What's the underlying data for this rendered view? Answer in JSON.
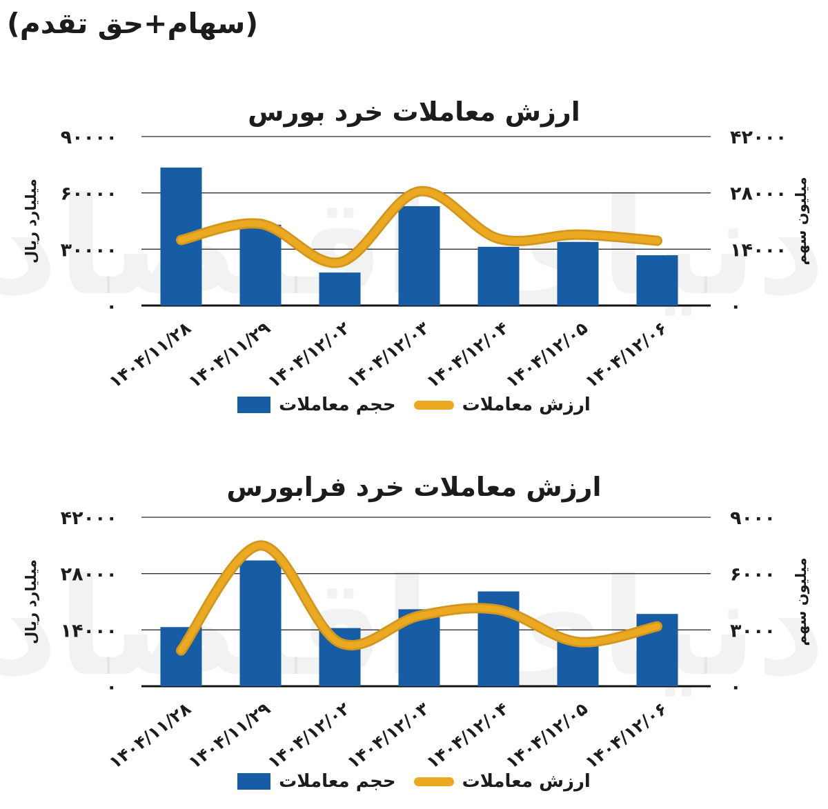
{
  "page": {
    "header_note": "(سهام+حق تقدم)",
    "watermark_text": "دنیای اقتصاد"
  },
  "colors": {
    "bar_blue": "#165DA5",
    "line_yellow": "#EBA922",
    "line_yellow_edge": "#D2961C",
    "grid": "#2f2f2f",
    "axis_line": "#111111",
    "text": "#1c1c1c",
    "watermark": "#000000"
  },
  "chart_data": [
    {
      "type": "bar",
      "combo": "bar+line",
      "title": "ارزش معاملات خرد بورس",
      "categories": [
        "۱۴۰۴/۱۱/۲۸",
        "۱۴۰۴/۱۱/۲۹",
        "۱۴۰۴/۱۲/۰۲",
        "۱۴۰۴/۱۲/۰۳",
        "۱۴۰۴/۱۲/۰۴",
        "۱۴۰۴/۱۲/۰۵",
        "۱۴۰۴/۱۲/۰۶"
      ],
      "series": [
        {
          "name": "حجم معاملات",
          "type": "bar",
          "axis": "right",
          "values": [
            34300,
            20100,
            8200,
            24700,
            14600,
            15800,
            12500
          ]
        },
        {
          "name": "ارزش معاملات",
          "type": "line",
          "axis": "left",
          "values": [
            34900,
            43500,
            23000,
            60800,
            35600,
            37800,
            34500
          ]
        }
      ],
      "axes": {
        "left": {
          "title": "میلیارد ریال",
          "range": [
            0,
            90000
          ],
          "ticks": [
            "۰",
            "۳۰۰۰۰",
            "۶۰۰۰۰",
            "۹۰۰۰۰"
          ]
        },
        "right": {
          "title": "میلیون سهم",
          "range": [
            0,
            42000
          ],
          "ticks": [
            "۰",
            "۱۴۰۰۰",
            "۲۸۰۰۰",
            "۴۲۰۰۰"
          ]
        }
      },
      "grid": true,
      "legend_position": "bottom"
    },
    {
      "type": "bar",
      "combo": "bar+line",
      "title": "ارزش معاملات خرد فرابورس",
      "categories": [
        "۱۴۰۴/۱۱/۲۸",
        "۱۴۰۴/۱۱/۲۹",
        "۱۴۰۴/۱۲/۰۲",
        "۱۴۰۴/۱۲/۰۳",
        "۱۴۰۴/۱۲/۰۴",
        "۱۴۰۴/۱۲/۰۵",
        "۱۴۰۴/۱۲/۰۶"
      ],
      "series": [
        {
          "name": "حجم معاملات",
          "type": "bar",
          "axis": "right",
          "values": [
            3150,
            6700,
            3100,
            4100,
            5050,
            2450,
            3850
          ]
        },
        {
          "name": "ارزش معاملات",
          "type": "line",
          "axis": "left",
          "values": [
            8900,
            35000,
            10800,
            17500,
            19000,
            11000,
            14900
          ]
        }
      ],
      "axes": {
        "left": {
          "title": "میلیارد ریال",
          "range": [
            0,
            42000
          ],
          "ticks": [
            "۰",
            "۱۴۰۰۰",
            "۲۸۰۰۰",
            "۴۲۰۰۰"
          ]
        },
        "right": {
          "title": "میلیون سهم",
          "range": [
            0,
            9000
          ],
          "ticks": [
            "۰",
            "۳۰۰۰",
            "۶۰۰۰",
            "۹۰۰۰"
          ]
        }
      },
      "grid": true,
      "legend_position": "bottom"
    }
  ]
}
